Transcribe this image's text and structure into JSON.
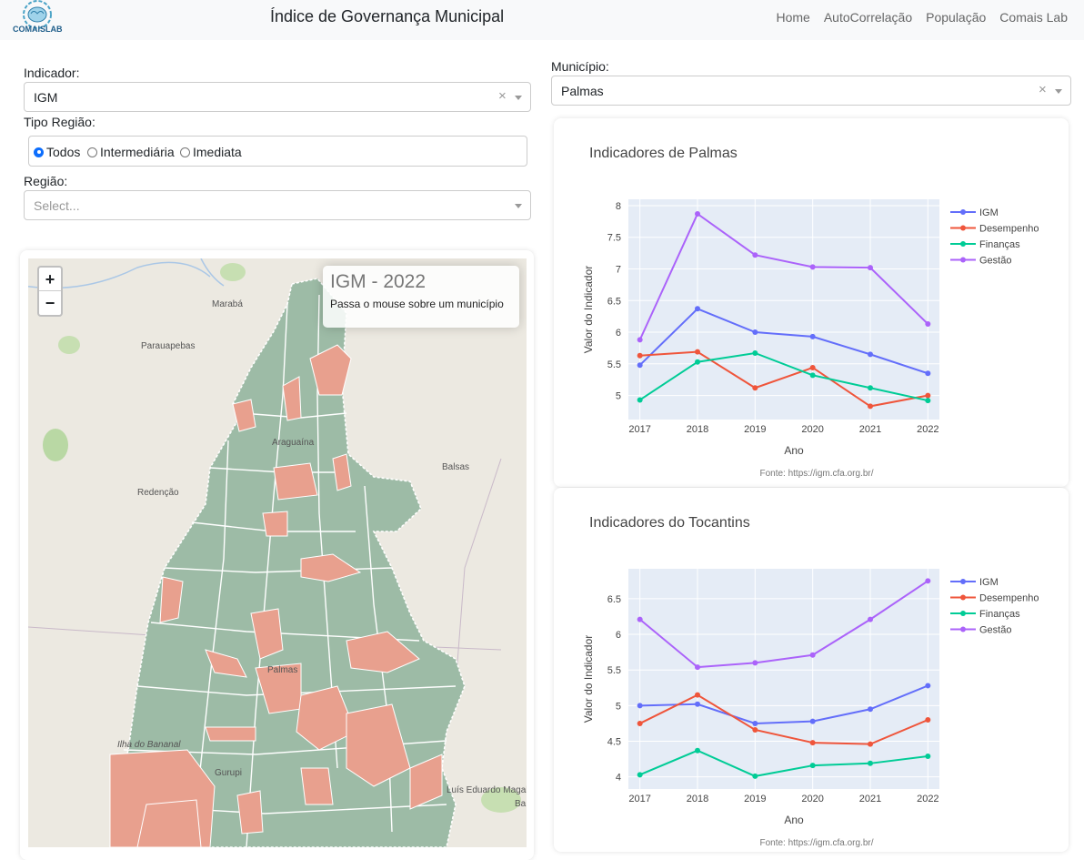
{
  "navbar": {
    "logo_text": "COMAISLAB",
    "title": "Índice de Governança Municipal",
    "links": [
      "Home",
      "AutoCorrelação",
      "População",
      "Comais Lab"
    ]
  },
  "filters": {
    "indicador": {
      "label": "Indicador:",
      "value": "IGM",
      "clear": "×"
    },
    "tipo_regiao": {
      "label": "Tipo Região:",
      "options": [
        "Todos",
        "Intermediária",
        "Imediata"
      ],
      "selected": "Todos"
    },
    "regiao": {
      "label": "Região:",
      "placeholder": "Select..."
    },
    "municipio": {
      "label": "Município:",
      "value": "Palmas",
      "clear": "×"
    }
  },
  "map": {
    "zoom_in": "+",
    "zoom_out": "−",
    "info_title": "IGM - 2022",
    "info_subtitle": "Passa o mouse sobre um município",
    "place_labels": [
      "Marabá",
      "Parauapebas",
      "Redenção",
      "Araguaína",
      "Balsas",
      "Palmas",
      "Ilha do Bananal",
      "Gurupi",
      "Luís Eduardo Magalhães",
      "Ba"
    ],
    "colors": {
      "low": "#e8a08e",
      "high": "#9dbba6",
      "base": "#ece9e1"
    }
  },
  "colors": {
    "IGM": "#636efa",
    "Desempenho": "#ef553b",
    "Finanças": "#00cc96",
    "Gestão": "#ab63fa",
    "plot_bg": "#e5ecf6"
  },
  "chart_data": [
    {
      "type": "line",
      "title": "Indicadores de Palmas",
      "xlabel": "Ano",
      "ylabel": "Valor do Indicador",
      "x": [
        2017,
        2018,
        2019,
        2020,
        2021,
        2022
      ],
      "ylim": [
        4.62,
        8.1
      ],
      "yticks": [
        5,
        5.5,
        6,
        6.5,
        7,
        7.5,
        8
      ],
      "ytick_labels": [
        "5",
        "5.5",
        "6",
        "6.5",
        "7",
        "7.5",
        "8"
      ],
      "legend": "right",
      "series": [
        {
          "name": "IGM",
          "values": [
            5.48,
            6.37,
            6.0,
            5.93,
            5.65,
            5.35
          ]
        },
        {
          "name": "Desempenho",
          "values": [
            5.63,
            5.69,
            5.12,
            5.44,
            4.83,
            5.0
          ]
        },
        {
          "name": "Finanças",
          "values": [
            4.93,
            5.53,
            5.67,
            5.32,
            5.12,
            4.92
          ]
        },
        {
          "name": "Gestão",
          "values": [
            5.88,
            7.87,
            7.22,
            7.03,
            7.02,
            6.13
          ]
        }
      ],
      "source": "Fonte: https://igm.cfa.org.br/"
    },
    {
      "type": "line",
      "title": "Indicadores do Tocantins",
      "xlabel": "Ano",
      "ylabel": "Valor do Indicador",
      "x": [
        2017,
        2018,
        2019,
        2020,
        2021,
        2022
      ],
      "ylim": [
        3.83,
        6.92
      ],
      "yticks": [
        4,
        4.5,
        5,
        5.5,
        6,
        6.5
      ],
      "ytick_labels": [
        "4",
        "4.5",
        "5",
        "5.5",
        "6",
        "6.5"
      ],
      "legend": "right",
      "series": [
        {
          "name": "IGM",
          "values": [
            5.0,
            5.02,
            4.75,
            4.78,
            4.95,
            5.28
          ]
        },
        {
          "name": "Desempenho",
          "values": [
            4.75,
            5.15,
            4.66,
            4.48,
            4.46,
            4.8
          ]
        },
        {
          "name": "Finanças",
          "values": [
            4.03,
            4.37,
            4.01,
            4.16,
            4.19,
            4.29
          ]
        },
        {
          "name": "Gestão",
          "values": [
            6.21,
            5.54,
            5.6,
            5.71,
            6.21,
            6.75
          ]
        }
      ],
      "source": "Fonte: https://igm.cfa.org.br/"
    }
  ]
}
